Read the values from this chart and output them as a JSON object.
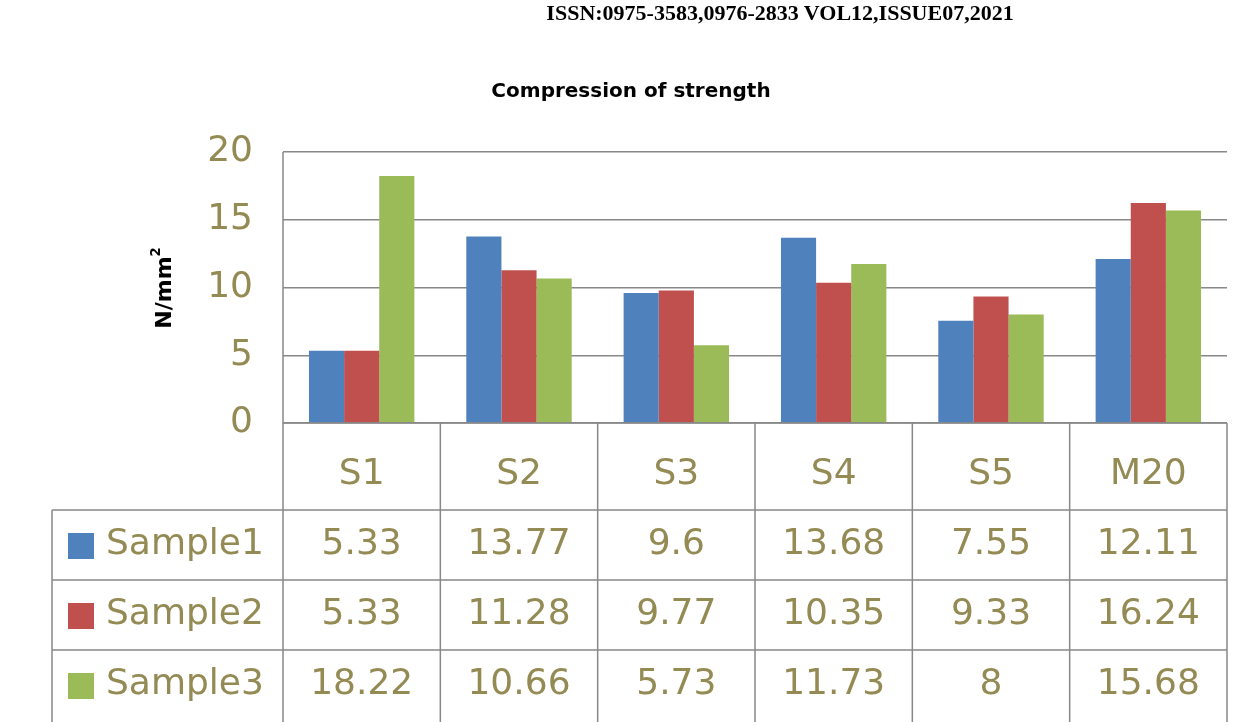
{
  "chart_data": {
    "type": "bar",
    "title": "Compression of strength",
    "ylabel": "N/mm$^{2}$",
    "annotations": [
      "ISSN:0975-3583,0976-2833 VOL12,ISSUE07,2021"
    ],
    "categories": [
      "S1",
      "S2",
      "S3",
      "S4",
      "S5",
      "M20"
    ],
    "series": [
      {
        "name": "Sample1",
        "color": "#4f81bd",
        "values": [
          5.33,
          13.77,
          9.6,
          13.68,
          7.55,
          12.11
        ]
      },
      {
        "name": "Sample2",
        "color": "#c0504d",
        "values": [
          5.33,
          11.28,
          9.77,
          10.35,
          9.33,
          16.24
        ]
      },
      {
        "name": "Sample3",
        "color": "#9bbb59",
        "values": [
          18.22,
          10.66,
          5.73,
          11.73,
          8,
          15.68
        ]
      }
    ],
    "ylim": [
      0,
      20
    ],
    "yticks": [
      0,
      5,
      10,
      15,
      20
    ],
    "grid": "y",
    "data_labels": true,
    "legend": "bottom"
  }
}
